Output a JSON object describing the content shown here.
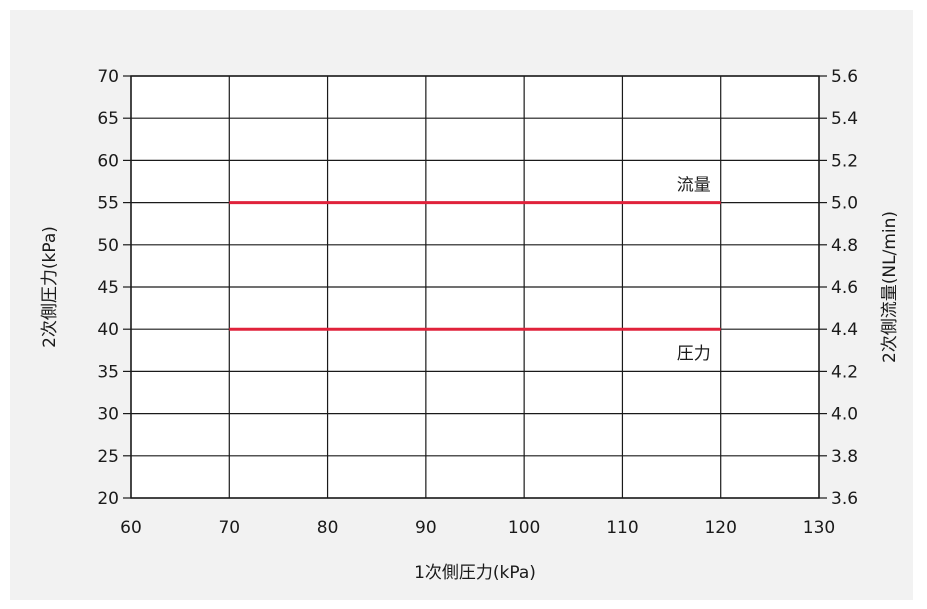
{
  "chart_data": {
    "type": "line",
    "xlabel": "1次側圧力(kPa)",
    "ylabel_left": "2次側圧力(kPa)",
    "ylabel_right": "2次側流量(NL/min)",
    "xlim": [
      60,
      130
    ],
    "ylim_left": [
      20,
      70
    ],
    "ylim_right": [
      3.6,
      5.6
    ],
    "grid": true,
    "x_ticks": [
      60,
      70,
      80,
      90,
      100,
      110,
      120,
      130
    ],
    "y_ticks_left": [
      20,
      25,
      30,
      35,
      40,
      45,
      50,
      55,
      60,
      65,
      70
    ],
    "y_ticks_right": [
      "3.6",
      "3.8",
      "4.0",
      "4.2",
      "4.4",
      "4.6",
      "4.8",
      "5.0",
      "5.2",
      "5.4",
      "5.6"
    ],
    "series": [
      {
        "name": "流量",
        "axis": "right",
        "x": [
          70,
          120
        ],
        "y": [
          5.0,
          5.0
        ],
        "color": "#e0223b"
      },
      {
        "name": "圧力",
        "axis": "left",
        "x": [
          70,
          120
        ],
        "y": [
          40,
          40
        ],
        "color": "#e0223b"
      }
    ]
  },
  "colors": {
    "background": "#f2f2f2",
    "plot_area": "#ffffff",
    "line": "#e0223b",
    "grid": "#1a1a1a"
  }
}
